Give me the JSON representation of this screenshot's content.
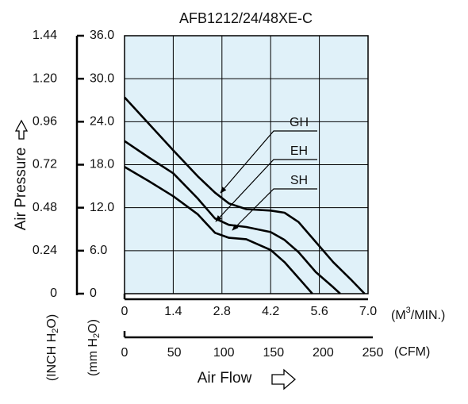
{
  "chart_data": {
    "type": "line",
    "title": "AFB1212/24/48XE-C",
    "y_label": "Air Pressure",
    "x_label": "Air Flow",
    "x_unit": [
      "(M",
      "3",
      "/MIN.)"
    ],
    "x2_unit": "(CFM)",
    "y_unit": [
      "(mm H",
      "2",
      "O)"
    ],
    "y2_unit": [
      "(INCH H",
      "2",
      "O)"
    ],
    "xlim": [
      0,
      7
    ],
    "xticks": [
      0,
      1.4,
      2.8,
      4.2,
      5.6,
      {
        "value": 7,
        "label": "7.0"
      }
    ],
    "x2lim": [
      0,
      250
    ],
    "x2ticks": [
      0,
      50,
      100,
      150,
      200,
      250
    ],
    "ylim": [
      0,
      36
    ],
    "yticks": [
      0,
      {
        "value": 6,
        "label": "6.0"
      },
      {
        "value": 12,
        "label": "12.0"
      },
      {
        "value": 18,
        "label": "18.0"
      },
      {
        "value": 24,
        "label": "24.0"
      },
      {
        "value": 30,
        "label": "30.0"
      },
      {
        "value": 36,
        "label": "36.0"
      }
    ],
    "y2lim": [
      0,
      1.44
    ],
    "y2ticks": [
      0,
      0.24,
      0.48,
      0.72,
      0.96,
      {
        "value": 1.2,
        "label": "1.20"
      },
      1.44
    ],
    "grid": true,
    "series": [
      {
        "name": "GH",
        "color": "#000000",
        "x": [
          0,
          0.7,
          1.4,
          2.1,
          2.6,
          3.0,
          3.5,
          4.2,
          4.6,
          5.0,
          5.5,
          6.0,
          6.5,
          6.9
        ],
        "values": [
          27.4,
          23.7,
          20.0,
          16.4,
          14.1,
          12.6,
          11.8,
          11.6,
          11.3,
          10.0,
          7.2,
          4.4,
          2.0,
          0
        ]
      },
      {
        "name": "EH",
        "color": "#000000",
        "x": [
          0,
          0.7,
          1.4,
          2.1,
          2.6,
          3.0,
          3.5,
          4.2,
          4.6,
          5.0,
          5.5,
          6.0,
          6.2
        ],
        "values": [
          21.3,
          19.0,
          16.8,
          13.3,
          10.5,
          9.6,
          9.3,
          8.6,
          7.5,
          5.8,
          3.0,
          0.9,
          0
        ]
      },
      {
        "name": "SH",
        "color": "#000000",
        "x": [
          0,
          0.7,
          1.4,
          2.1,
          2.6,
          3.0,
          3.5,
          4.2,
          4.6,
          5.0,
          5.4
        ],
        "values": [
          17.7,
          15.7,
          13.6,
          11.1,
          8.5,
          7.8,
          7.6,
          6.1,
          4.4,
          2.2,
          0
        ]
      }
    ]
  }
}
